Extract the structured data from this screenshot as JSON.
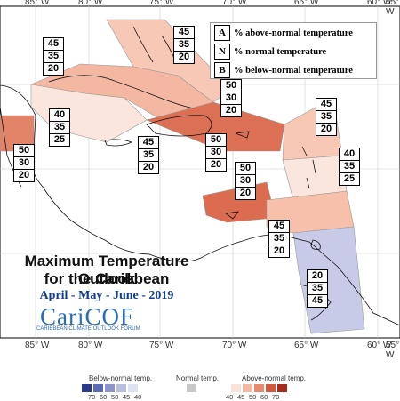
{
  "title_line1": "Maximum Temperature Outlook",
  "title_line2": "for the Caribbean",
  "period": "April - May - June - 2019",
  "logo": "CariCOF",
  "logo_subtitle": "CARIBBEAN CLIMATE OUTLOOK FORUM",
  "legend": [
    {
      "key": "A",
      "label": "% above-normal temperature"
    },
    {
      "key": "N",
      "label": "% normal temperature"
    },
    {
      "key": "B",
      "label": "% below-normal temperature"
    }
  ],
  "lon_top": [
    "85° W",
    "80° W",
    "75° W",
    "70° W",
    "65° W",
    "60° W",
    "55° W"
  ],
  "lon_bottom": [
    "85° W",
    "80° W",
    "75° W",
    "70° W",
    "65° W",
    "60° W",
    "55° W"
  ],
  "colorbar": {
    "below_title": "Below-normal temp.",
    "normal_title": "Normal temp.",
    "above_title": "Above-normal temp.",
    "below_ticks": [
      "70",
      "60",
      "50",
      "45",
      "40"
    ],
    "above_ticks": [
      "40",
      "45",
      "50",
      "60",
      "70"
    ],
    "below_colors": [
      "#2b3a8c",
      "#5a6ab5",
      "#8b95cc",
      "#b9bfe2",
      "#dfe2f2"
    ],
    "normal_color": "#c8c8c8",
    "above_colors": [
      "#fbe2d8",
      "#f5b8a0",
      "#ea8a6c",
      "#d2573c",
      "#a82a1a"
    ]
  },
  "probability_boxes": [
    {
      "id": "bahamas-west",
      "values": [
        "45",
        "35",
        "20"
      ]
    },
    {
      "id": "bahamas-east",
      "values": [
        "45",
        "35",
        "20"
      ]
    },
    {
      "id": "cuba-west",
      "values": [
        "40",
        "35",
        "25"
      ]
    },
    {
      "id": "belize",
      "values": [
        "50",
        "30",
        "20"
      ]
    },
    {
      "id": "jamaica",
      "values": [
        "45",
        "35",
        "20"
      ]
    },
    {
      "id": "hispaniola",
      "values": [
        "50",
        "30",
        "20"
      ]
    },
    {
      "id": "turks-caicos",
      "values": [
        "50",
        "30",
        "20"
      ]
    },
    {
      "id": "puerto-rico",
      "values": [
        "50",
        "30",
        "20"
      ]
    },
    {
      "id": "leeward",
      "values": [
        "45",
        "35",
        "20"
      ]
    },
    {
      "id": "windward",
      "values": [
        "40",
        "35",
        "25"
      ]
    },
    {
      "id": "trinidad",
      "values": [
        "45",
        "35",
        "20"
      ]
    },
    {
      "id": "guianas",
      "values": [
        "20",
        "35",
        "45"
      ]
    }
  ]
}
